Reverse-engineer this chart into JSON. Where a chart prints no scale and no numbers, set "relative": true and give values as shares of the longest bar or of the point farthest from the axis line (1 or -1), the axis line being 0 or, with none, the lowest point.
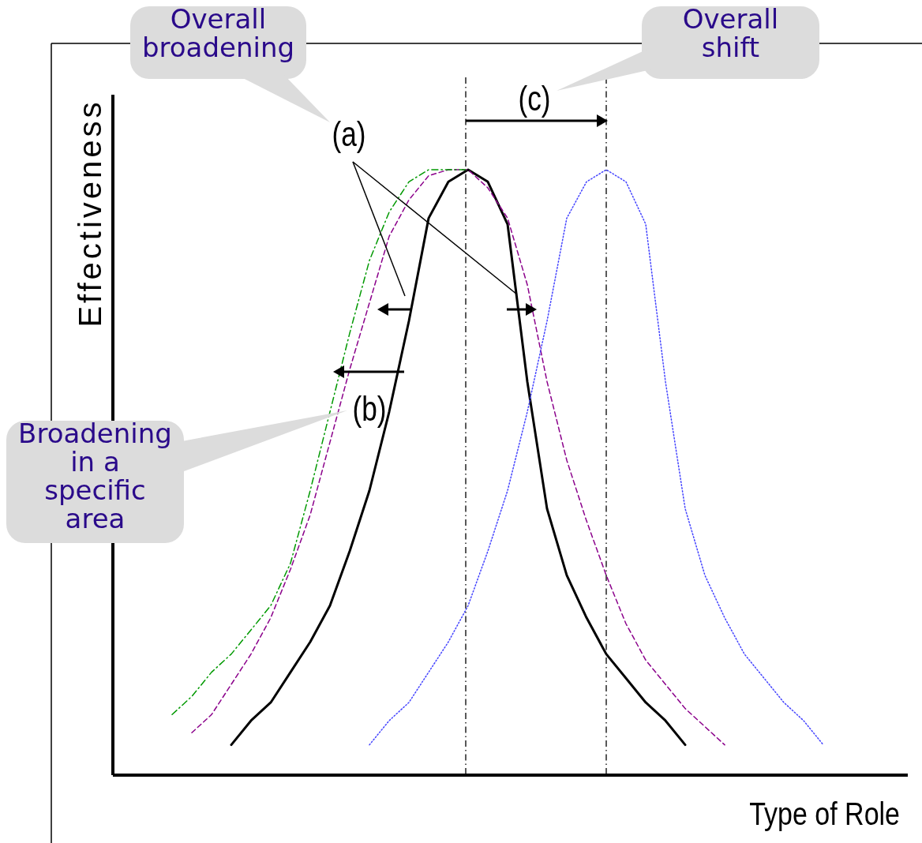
{
  "chart_data": {
    "type": "line",
    "relative": true,
    "xlabel": "Type of Role",
    "ylabel": "Effectiveness",
    "categories": [
      null,
      null,
      null,
      null,
      null,
      null,
      null,
      null,
      null,
      null,
      null,
      null,
      null,
      null,
      null,
      null,
      null,
      null,
      null,
      null,
      null,
      null,
      null,
      null,
      null,
      null,
      null,
      null,
      null,
      null,
      null,
      null,
      null,
      null,
      null,
      null,
      null,
      null,
      null,
      null,
      null
    ],
    "series": [
      {
        "color": "#000000",
        "line_style": "solid",
        "values": [
          null,
          null,
          null,
          null,
          null,
          null,
          0.05,
          0.09,
          0.12,
          0.17,
          0.22,
          0.28,
          0.37,
          0.47,
          0.6,
          0.75,
          0.92,
          0.98,
          1.0,
          0.98,
          0.91,
          0.65,
          0.44,
          0.33,
          0.26,
          0.2,
          0.16,
          0.12,
          0.09,
          0.05,
          null,
          null,
          null,
          null,
          null,
          null,
          null,
          null,
          null,
          null,
          null
        ]
      },
      {
        "color": "#8b008b",
        "line_style": "dashed",
        "values": [
          null,
          null,
          null,
          null,
          0.07,
          0.1,
          0.15,
          0.2,
          0.26,
          0.34,
          0.43,
          0.55,
          0.67,
          0.78,
          0.89,
          0.95,
          0.99,
          1.0,
          1.0,
          0.97,
          0.92,
          0.81,
          0.65,
          0.52,
          0.42,
          0.33,
          0.25,
          0.19,
          0.15,
          0.11,
          0.08,
          0.05,
          null,
          null,
          null,
          null,
          null,
          null,
          null,
          null,
          null
        ]
      },
      {
        "color": "#009900",
        "line_style": "dashdot",
        "values": [
          null,
          null,
          null,
          0.1,
          0.13,
          0.17,
          0.2,
          0.24,
          0.28,
          0.35,
          0.47,
          0.6,
          0.73,
          0.85,
          0.93,
          0.98,
          1.0,
          1.0,
          1.0,
          null,
          null,
          null,
          null,
          null,
          null,
          null,
          null,
          null,
          null,
          null,
          null,
          null,
          null,
          null,
          null,
          null,
          null,
          null,
          null,
          null,
          null
        ]
      },
      {
        "color": "#4444ff",
        "line_style": "dotted",
        "values": [
          null,
          null,
          null,
          null,
          null,
          null,
          null,
          null,
          null,
          null,
          null,
          null,
          null,
          0.05,
          0.09,
          0.12,
          0.17,
          0.22,
          0.28,
          0.37,
          0.47,
          0.6,
          0.75,
          0.92,
          0.98,
          1.0,
          0.98,
          0.91,
          0.65,
          0.44,
          0.33,
          0.26,
          0.2,
          0.16,
          0.12,
          0.09,
          0.05,
          null,
          null,
          null,
          null
        ]
      }
    ],
    "annotations": [
      "Overall\nbroadening",
      "Overall\nshift",
      "Broadening\nin a\nspecific\narea",
      "(a)",
      "(b)",
      "(c)"
    ]
  }
}
